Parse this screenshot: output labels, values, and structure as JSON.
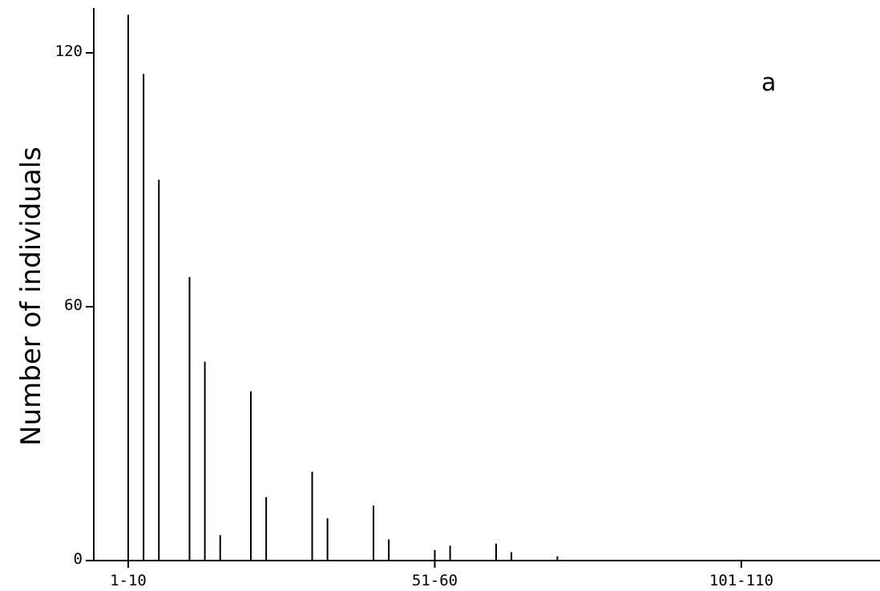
{
  "chart_data": {
    "type": "bar",
    "panel_label": "a",
    "ylabel": "Number of individuals",
    "xlabel": "",
    "ylim": [
      0,
      120
    ],
    "y_ticks": [
      {
        "value": 0,
        "label": "0"
      },
      {
        "value": 60,
        "label": "60"
      },
      {
        "value": 120,
        "label": "120"
      }
    ],
    "x_ticks": [
      {
        "x": 1,
        "label": "1-10"
      },
      {
        "x": 51,
        "label": "51-60"
      },
      {
        "x": 101,
        "label": "101-110"
      }
    ],
    "xlim": [
      -4,
      122
    ],
    "grid": false,
    "bars": [
      {
        "x": 1,
        "value": 129
      },
      {
        "x": 3.5,
        "value": 115
      },
      {
        "x": 6,
        "value": 90
      },
      {
        "x": 11,
        "value": 67
      },
      {
        "x": 13.5,
        "value": 47
      },
      {
        "x": 16,
        "value": 6
      },
      {
        "x": 21,
        "value": 40
      },
      {
        "x": 23.5,
        "value": 15
      },
      {
        "x": 31,
        "value": 21
      },
      {
        "x": 33.5,
        "value": 10
      },
      {
        "x": 41,
        "value": 13
      },
      {
        "x": 43.5,
        "value": 5
      },
      {
        "x": 51,
        "value": 2.5
      },
      {
        "x": 53.5,
        "value": 3.5
      },
      {
        "x": 61,
        "value": 4
      },
      {
        "x": 63.5,
        "value": 2
      },
      {
        "x": 71,
        "value": 1
      }
    ]
  }
}
